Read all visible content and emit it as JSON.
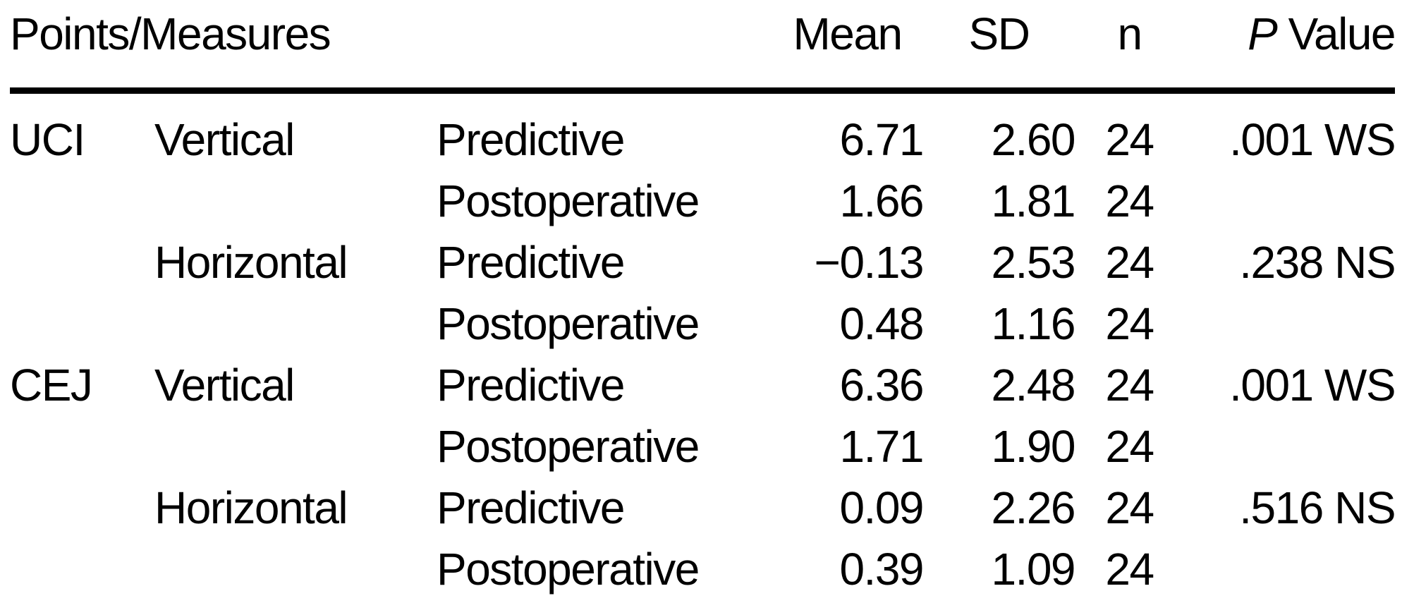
{
  "colors": {
    "text": "#000000",
    "background": "#ffffff",
    "rule": "#000000"
  },
  "table": {
    "header": {
      "points_measures": "Points/Measures",
      "mean": "Mean",
      "sd": "SD",
      "n": "n",
      "p_italic": "P",
      "p_rest": " Value"
    },
    "rows": [
      {
        "point": "UCI",
        "measure": "Vertical",
        "phase": "Predictive",
        "mean": "6.71",
        "sd": "2.60",
        "n": "24",
        "p": ".001 WS"
      },
      {
        "point": "",
        "measure": "",
        "phase": "Postoperative",
        "mean": "1.66",
        "sd": "1.81",
        "n": "24",
        "p": ""
      },
      {
        "point": "",
        "measure": "Horizontal",
        "phase": "Predictive",
        "mean": "−0.13",
        "sd": "2.53",
        "n": "24",
        "p": ".238 NS"
      },
      {
        "point": "",
        "measure": "",
        "phase": "Postoperative",
        "mean": "0.48",
        "sd": "1.16",
        "n": "24",
        "p": ""
      },
      {
        "point": "CEJ",
        "measure": "Vertical",
        "phase": "Predictive",
        "mean": "6.36",
        "sd": "2.48",
        "n": "24",
        "p": ".001 WS"
      },
      {
        "point": "",
        "measure": "",
        "phase": "Postoperative",
        "mean": "1.71",
        "sd": "1.90",
        "n": "24",
        "p": ""
      },
      {
        "point": "",
        "measure": "Horizontal",
        "phase": "Predictive",
        "mean": "0.09",
        "sd": "2.26",
        "n": "24",
        "p": ".516 NS"
      },
      {
        "point": "",
        "measure": "",
        "phase": "Postoperative",
        "mean": "0.39",
        "sd": "1.09",
        "n": "24",
        "p": ""
      }
    ]
  }
}
